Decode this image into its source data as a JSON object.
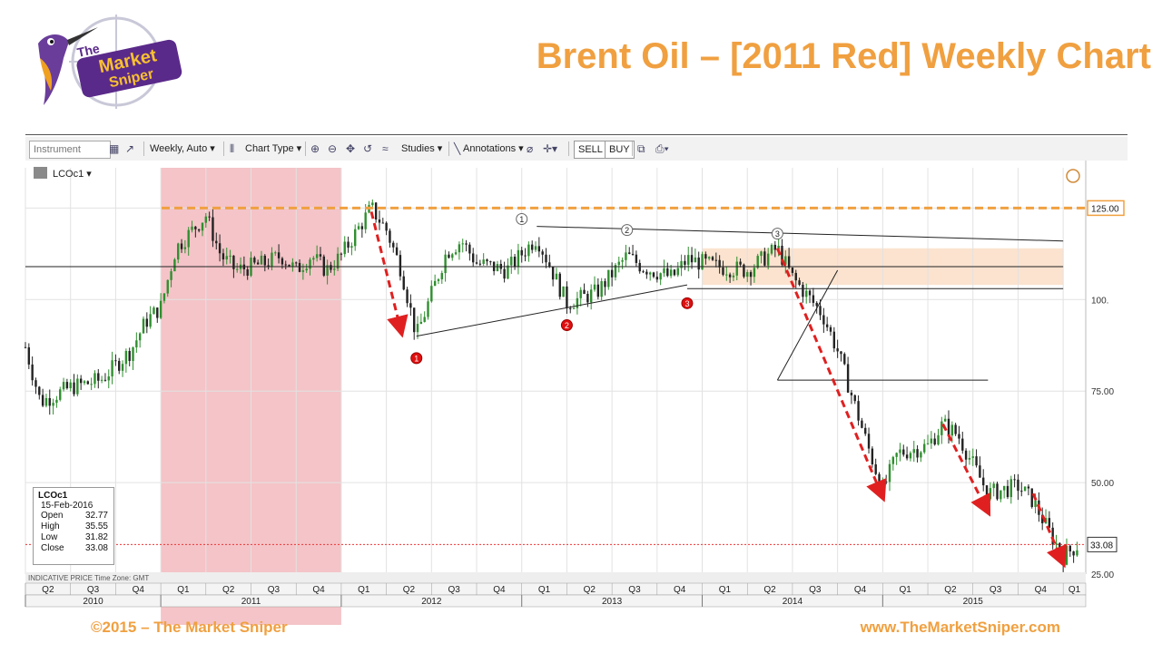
{
  "slide": {
    "title": "Brent Oil – [2011 Red] Weekly Chart",
    "footer_left": "©2015 – The Market Sniper",
    "footer_right": "www.TheMarketSniper.com",
    "logo_text": "The Market Sniper",
    "accent_color": "#f0a040"
  },
  "toolbar": {
    "instrument_placeholder": "Instrument",
    "interval_label": "Weekly, Auto",
    "chart_type_label": "Chart Type",
    "studies_label": "Studies",
    "annotations_label": "Annotations",
    "sell_label": "SELL",
    "buy_label": "BUY"
  },
  "legend": {
    "symbol": "LCOc1",
    "footnote": "INDICATIVE PRICE   Time Zone: GMT"
  },
  "ohlc": {
    "symbol": "LCOc1",
    "date": "15-Feb-2016",
    "rows": [
      {
        "label": "Open",
        "value": "32.77"
      },
      {
        "label": "High",
        "value": "35.55"
      },
      {
        "label": "Low",
        "value": "31.82"
      },
      {
        "label": "Close",
        "value": "33.08"
      }
    ]
  },
  "chart_data": {
    "type": "candlestick",
    "symbol": "LCOc1",
    "interval": "Weekly",
    "x_range": [
      "2010-04",
      "2016-02"
    ],
    "ylim": [
      25,
      136
    ],
    "y_ticks": [
      "125.00",
      "100.",
      "75.00",
      "50.00",
      "25.00"
    ],
    "grid": true,
    "last_price": "33.08",
    "resistance_level": "125.00",
    "price_path": [
      [
        "2010-04",
        87
      ],
      [
        "2010-05",
        72
      ],
      [
        "2010-07",
        76
      ],
      [
        "2010-09",
        78
      ],
      [
        "2010-11",
        86
      ],
      [
        "2010-12",
        94
      ],
      [
        "2011-01",
        98
      ],
      [
        "2011-02",
        114
      ],
      [
        "2011-04",
        123
      ],
      [
        "2011-05",
        112
      ],
      [
        "2011-06",
        108
      ],
      [
        "2011-08",
        110
      ],
      [
        "2011-09",
        112
      ],
      [
        "2011-10",
        108
      ],
      [
        "2011-11",
        112
      ],
      [
        "2011-12",
        108
      ],
      [
        "2012-01",
        112
      ],
      [
        "2012-03",
        125
      ],
      [
        "2012-04",
        119
      ],
      [
        "2012-05",
        108
      ],
      [
        "2012-06",
        90
      ],
      [
        "2012-08",
        113
      ],
      [
        "2012-09",
        116
      ],
      [
        "2012-10",
        110
      ],
      [
        "2012-12",
        108
      ],
      [
        "2013-02",
        117
      ],
      [
        "2013-03",
        108
      ],
      [
        "2013-04",
        99
      ],
      [
        "2013-06",
        102
      ],
      [
        "2013-08",
        112
      ],
      [
        "2013-09",
        109
      ],
      [
        "2013-11",
        106
      ],
      [
        "2013-12",
        111
      ],
      [
        "2014-02",
        109
      ],
      [
        "2014-04",
        108
      ],
      [
        "2014-06",
        114
      ],
      [
        "2014-07",
        106
      ],
      [
        "2014-09",
        96
      ],
      [
        "2014-10",
        86
      ],
      [
        "2014-12",
        60
      ],
      [
        "2015-01",
        48
      ],
      [
        "2015-02",
        58
      ],
      [
        "2015-04",
        60
      ],
      [
        "2015-05",
        66
      ],
      [
        "2015-06",
        63
      ],
      [
        "2015-08",
        47
      ],
      [
        "2015-09",
        48
      ],
      [
        "2015-10",
        49
      ],
      [
        "2015-11",
        45
      ],
      [
        "2015-12",
        37
      ],
      [
        "2016-01",
        30
      ],
      [
        "2016-02",
        33
      ]
    ],
    "shaded_period": {
      "label": "2011",
      "from": "2011-01",
      "to": "2012-01",
      "color": "#f4c4c8"
    },
    "consolidation_zone": {
      "from": "2014-01",
      "to": "2016-01",
      "y_low": 104,
      "y_high": 114,
      "color": "#fbe3cf"
    },
    "trendlines": [
      {
        "x1": "2012-06",
        "y1": 90,
        "x2": "2013-12",
        "y2": 104
      },
      {
        "x1": "2013-02",
        "y1": 120,
        "x2": "2016-01",
        "y2": 116
      },
      {
        "x1": "2010-04",
        "y1": 109,
        "x2": "2016-01",
        "y2": 109
      },
      {
        "x1": "2013-12",
        "y1": 103,
        "x2": "2016-01",
        "y2": 103
      },
      {
        "x1": "2014-06",
        "y1": 78,
        "x2": "2015-08",
        "y2": 78
      },
      {
        "x1": "2014-06",
        "y1": 78,
        "x2": "2014-10",
        "y2": 108
      }
    ],
    "down_arrows": [
      {
        "x1": "2012-03",
        "y1": 124,
        "x2": "2012-05",
        "y2": 91
      },
      {
        "x1": "2014-06",
        "y1": 114,
        "x2": "2015-01",
        "y2": 46
      },
      {
        "x1": "2015-05",
        "y1": 66,
        "x2": "2015-08",
        "y2": 42
      },
      {
        "x1": "2015-11",
        "y1": 47,
        "x2": "2016-01",
        "y2": 28
      }
    ],
    "markers": [
      {
        "label": "1",
        "x": "2013-01",
        "y": 122,
        "style": "white"
      },
      {
        "label": "2",
        "x": "2013-08",
        "y": 119,
        "style": "white"
      },
      {
        "label": "3",
        "x": "2014-06",
        "y": 118,
        "style": "white"
      },
      {
        "label": "1",
        "x": "2012-06",
        "y": 84,
        "style": "red"
      },
      {
        "label": "2",
        "x": "2013-04",
        "y": 93,
        "style": "red"
      },
      {
        "label": "3",
        "x": "2013-12",
        "y": 99,
        "style": "red"
      }
    ],
    "quarter_labels": [
      "Q2",
      "Q3",
      "Q4",
      "Q1",
      "Q2",
      "Q3",
      "Q4",
      "Q1",
      "Q2",
      "Q3",
      "Q4",
      "Q1",
      "Q2",
      "Q3",
      "Q4",
      "Q1",
      "Q2",
      "Q3",
      "Q4",
      "Q1",
      "Q2",
      "Q3",
      "Q4",
      "Q1"
    ],
    "year_labels": [
      "2010",
      "2011",
      "2012",
      "2013",
      "2014",
      "2015"
    ]
  }
}
